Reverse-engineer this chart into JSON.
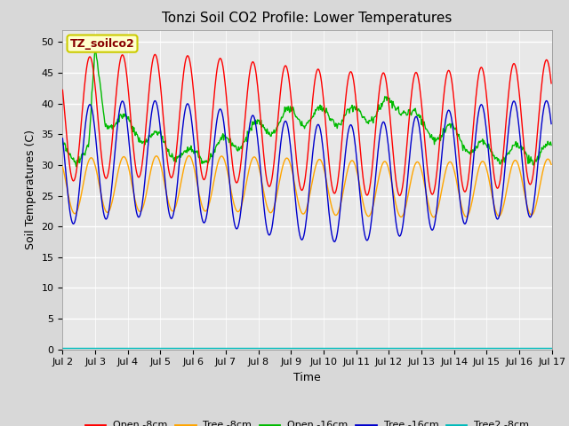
{
  "title": "Tonzi Soil CO2 Profile: Lower Temperatures",
  "xlabel": "Time",
  "ylabel": "Soil Temperatures (C)",
  "ylim": [
    0,
    52
  ],
  "yticks": [
    0,
    5,
    10,
    15,
    20,
    25,
    30,
    35,
    40,
    45,
    50
  ],
  "xtick_labels": [
    "Jul 2",
    "Jul 3",
    "Jul 4",
    "Jul 5",
    "Jul 6",
    "Jul 7",
    "Jul 8",
    "Jul 9",
    "Jul 10",
    "Jul 11",
    "Jul 12",
    "Jul 13",
    "Jul 14",
    "Jul 15",
    "Jul 16",
    "Jul 17"
  ],
  "legend": [
    "Open -8cm",
    "Tree -8cm",
    "Open -16cm",
    "Tree -16cm",
    "Tree2 -8cm"
  ],
  "legend_colors": [
    "#ff0000",
    "#ffa500",
    "#00bb00",
    "#0000cc",
    "#00bbbb"
  ],
  "background_color": "#d8d8d8",
  "plot_bg_color": "#e8e8e8",
  "annotation_text": "TZ_soilco2",
  "annotation_bg": "#ffffcc",
  "annotation_border": "#cccc00",
  "annotation_fg": "#880000",
  "title_fontsize": 11,
  "axis_label_fontsize": 9,
  "tick_fontsize": 8,
  "legend_fontsize": 8,
  "n_days": 15,
  "pts_per_day": 48
}
